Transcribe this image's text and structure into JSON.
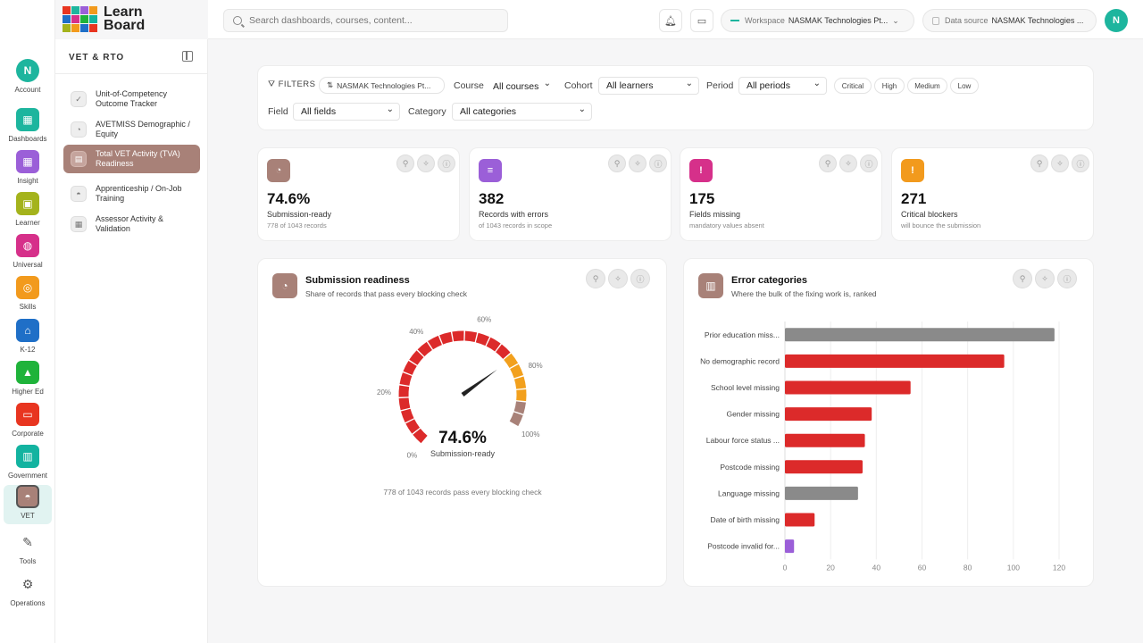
{
  "app": {
    "logo_line1": "Learn",
    "logo_line2": "Board"
  },
  "rail": {
    "items": [
      {
        "label": "Account",
        "initial": "N",
        "color": "#1db59e",
        "icon": "avatar"
      },
      {
        "label": "Dashboards",
        "color": "#1db59e",
        "icon": "grid-icon"
      },
      {
        "label": "Insight",
        "color": "#9b5fd8",
        "icon": "grid-icon"
      },
      {
        "label": "Learner",
        "color": "#a4b31c",
        "icon": "id-card-icon"
      },
      {
        "label": "Universal",
        "color": "#d6308a",
        "icon": "globe-icon"
      },
      {
        "label": "Skills",
        "color": "#f29a1d",
        "icon": "target-icon"
      },
      {
        "label": "K-12",
        "color": "#1f6fc7",
        "icon": "school-icon"
      },
      {
        "label": "Higher Ed",
        "color": "#1fb33a",
        "icon": "grad-cap-icon"
      },
      {
        "label": "Corporate",
        "color": "#e83520",
        "icon": "briefcase-icon"
      },
      {
        "label": "Government",
        "color": "#13b3a0",
        "icon": "building-icon"
      },
      {
        "label": "VET",
        "color": "#a88178",
        "icon": "hard-hat-icon"
      },
      {
        "label": "Tools",
        "color": "",
        "icon": "wrench-icon"
      },
      {
        "label": "Operations",
        "color": "",
        "icon": "gear-icon"
      }
    ]
  },
  "sidebar": {
    "heading": "VET & RTO",
    "items": [
      {
        "label": "Unit-of-Competency Outcome Tracker"
      },
      {
        "label": "AVETMISS Demographic / Equity"
      },
      {
        "label": "Total VET Activity (TVA) Readiness"
      },
      {
        "label": "Apprenticeship / On-Job Training"
      },
      {
        "label": "Assessor Activity & Validation"
      }
    ]
  },
  "topbar": {
    "search_placeholder": "Search dashboards, courses, content...",
    "workspace_label": "Workspace",
    "workspace_value": "NASMAK Technologies Pt...",
    "datasource_label": "Data source",
    "datasource_value": "NASMAK Technologies ...",
    "avatar_initial": "N"
  },
  "filters": {
    "title": "FILTERS",
    "org_chip": "NASMAK Technologies Pt...",
    "course_label": "Course",
    "course_value": "All courses",
    "cohort_label": "Cohort",
    "cohort_value": "All learners",
    "period_label": "Period",
    "period_value": "All periods",
    "severity_chips": [
      "Critical",
      "High",
      "Medium",
      "Low"
    ],
    "field_label": "Field",
    "field_value": "All fields",
    "category_label": "Category",
    "category_value": "All categories"
  },
  "kpis": [
    {
      "value": "74.6%",
      "label": "Submission-ready",
      "sub": "778 of 1043 records",
      "color": "#a88178",
      "icon": "gauge-icon"
    },
    {
      "value": "382",
      "label": "Records with errors",
      "sub": "of 1043 records in scope",
      "color": "#9b5fd8",
      "icon": "list-icon"
    },
    {
      "value": "175",
      "label": "Fields missing",
      "sub": "mandatory values absent",
      "color": "#d6308a",
      "icon": "alert-doc-icon"
    },
    {
      "value": "271",
      "label": "Critical blockers",
      "sub": "will bounce the submission",
      "color": "#f29a1d",
      "icon": "alert-circle-icon"
    }
  ],
  "readiness": {
    "title": "Submission readiness",
    "subtitle": "Share of records that pass every blocking check",
    "value_text": "74.6%",
    "value": 74.6,
    "value_label": "Submission-ready",
    "note": "778 of 1043 records pass every blocking check",
    "ticks": [
      "0%",
      "20%",
      "40%",
      "60%",
      "80%",
      "100%"
    ]
  },
  "chart_data": {
    "type": "bar",
    "orientation": "horizontal",
    "title": "Error categories",
    "subtitle": "Where the bulk of the fixing work is, ranked",
    "categories": [
      "Prior education miss...",
      "No demographic record",
      "School level missing",
      "Gender missing",
      "Labour force status ...",
      "Postcode missing",
      "Language missing",
      "Date of birth missing",
      "Postcode invalid for..."
    ],
    "values": [
      118,
      96,
      55,
      38,
      35,
      34,
      32,
      13,
      4
    ],
    "colors": [
      "#8a8a8a",
      "#dc2a2a",
      "#dc2a2a",
      "#dc2a2a",
      "#dc2a2a",
      "#dc2a2a",
      "#8a8a8a",
      "#dc2a2a",
      "#9b5fd8"
    ],
    "xlim": [
      0,
      120
    ],
    "xticks": [
      0,
      20,
      40,
      60,
      80,
      100,
      120
    ],
    "grid": true
  }
}
